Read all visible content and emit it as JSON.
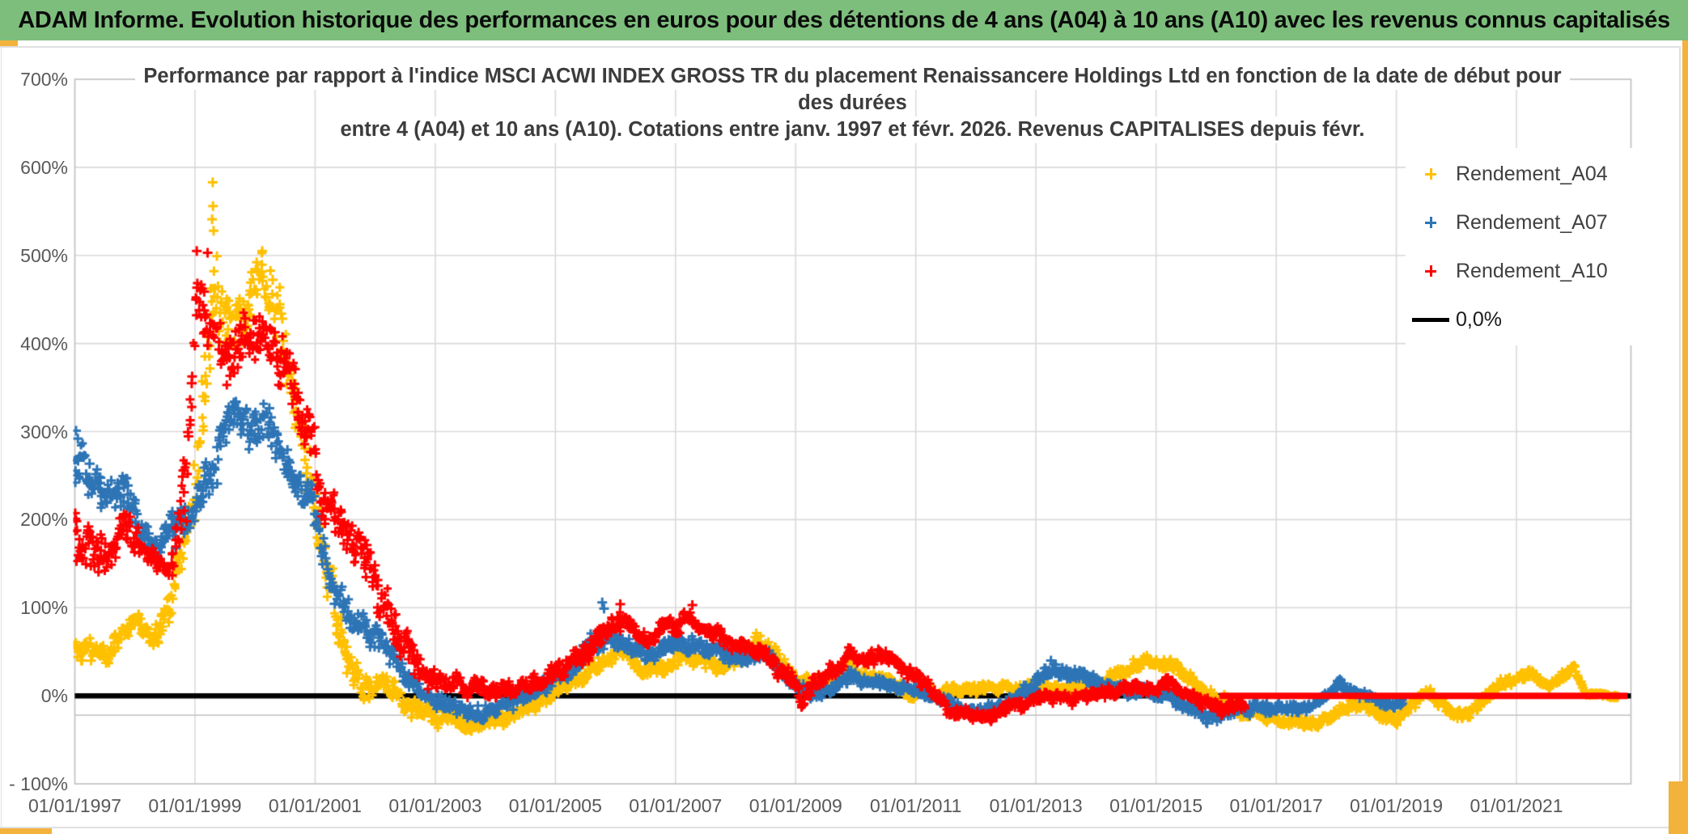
{
  "banner": {
    "title": "ADAM Informe. Evolution historique des performances en euros pour des détentions de 4 ans (A04) à 10 ans (A10) avec les revenus connus capitalisés"
  },
  "chart": {
    "title_lines": [
      "Performance par rapport à l'indice MSCI ACWI INDEX GROSS TR  du placement Renaissancere Holdings Ltd en fonction de la date de début pour",
      "des durées",
      "entre 4 (A04) et 10 ans (A10). Cotations entre janv. 1997 et févr. 2026. Revenus CAPITALISES depuis févr."
    ],
    "legend": [
      {
        "label": "Rendement_A04",
        "color": "#FFC000",
        "marker": "plus"
      },
      {
        "label": "Rendement_A07",
        "color": "#2E75B6",
        "marker": "plus"
      },
      {
        "label": "Rendement_A10",
        "color": "#FF0000",
        "marker": "plus"
      },
      {
        "label": "0,0%",
        "color": "#000000",
        "marker": "line"
      }
    ]
  },
  "chart_data": {
    "type": "scatter",
    "title": "Performance par rapport à l'indice MSCI ACWI INDEX GROSS TR du placement Renaissancere Holdings Ltd en fonction de la date de début pour des durées entre 4 (A04) et 10 ans (A10). Cotations entre janv. 1997 et févr. 2026. Revenus CAPITALISES depuis févr.",
    "marker": "plus-cross",
    "grid": {
      "vertical_every_years": 2,
      "horizontal_every_pct": 100,
      "color": "#D9D9D9"
    },
    "x_axis": {
      "labels": [
        "01/01/1997",
        "01/01/1999",
        "01/01/2001",
        "01/01/2003",
        "01/01/2005",
        "01/01/2007",
        "01/01/2009",
        "01/01/2011",
        "01/01/2013",
        "01/01/2015",
        "01/01/2017",
        "01/01/2019",
        "01/01/2021"
      ],
      "tick_years": [
        1997,
        1999,
        2001,
        2003,
        2005,
        2007,
        2009,
        2011,
        2013,
        2015,
        2017,
        2019,
        2021
      ],
      "min_year": 1997.0,
      "max_year": 2022.9
    },
    "y_axis": {
      "labels": [
        "700%",
        "600%",
        "500%",
        "400%",
        "300%",
        "200%",
        "100%",
        "0%",
        "- 100%"
      ],
      "tick_values": [
        700,
        600,
        500,
        400,
        300,
        200,
        100,
        0,
        -100
      ],
      "min": -100,
      "max": 700,
      "unit": "%"
    },
    "zero_line": {
      "value": 0,
      "color": "#000000",
      "label": "0,0%"
    },
    "red_zero_segment": {
      "from_year": 2016.05,
      "to_year": 2022.85,
      "value": 0,
      "color": "#FF0000"
    },
    "minor_line": {
      "value": -22,
      "color": "#C9C9C9"
    },
    "series": [
      {
        "name": "Rendement_A04",
        "color": "#FFC000",
        "seed": 11,
        "anchors": [
          [
            1997.0,
            55,
            16
          ],
          [
            1997.45,
            42,
            14
          ],
          [
            1997.75,
            62,
            14
          ],
          [
            1998.0,
            88,
            14
          ],
          [
            1998.3,
            64,
            12
          ],
          [
            1998.6,
            100,
            22
          ],
          [
            1999.0,
            215,
            45
          ],
          [
            1999.2,
            400,
            55
          ],
          [
            1999.32,
            480,
            55
          ],
          [
            1999.5,
            420,
            42
          ],
          [
            1999.8,
            420,
            40
          ],
          [
            2000.1,
            472,
            32
          ],
          [
            2000.3,
            452,
            40
          ],
          [
            2000.6,
            360,
            40
          ],
          [
            2000.9,
            262,
            35
          ],
          [
            2001.1,
            190,
            30
          ],
          [
            2001.45,
            62,
            30
          ],
          [
            2001.75,
            12,
            16
          ],
          [
            2002.2,
            6,
            14
          ],
          [
            2002.6,
            -14,
            12
          ],
          [
            2003.0,
            -25,
            11
          ],
          [
            2003.6,
            -31,
            9
          ],
          [
            2004.2,
            -26,
            9
          ],
          [
            2004.8,
            -6,
            9
          ],
          [
            2005.4,
            24,
            11
          ],
          [
            2006.05,
            50,
            11
          ],
          [
            2006.5,
            30,
            9
          ],
          [
            2007.1,
            46,
            11
          ],
          [
            2007.7,
            30,
            9
          ],
          [
            2008.4,
            62,
            13
          ],
          [
            2009.0,
            20,
            9
          ],
          [
            2009.45,
            16,
            8
          ],
          [
            2009.85,
            33,
            9
          ],
          [
            2010.35,
            20,
            8
          ],
          [
            2010.85,
            2,
            8
          ],
          [
            2011.3,
            6,
            7
          ],
          [
            2012.0,
            10,
            7
          ],
          [
            2012.6,
            7,
            7
          ],
          [
            2013.1,
            13,
            7
          ],
          [
            2013.6,
            8,
            7
          ],
          [
            2014.1,
            16,
            7
          ],
          [
            2014.7,
            38,
            8
          ],
          [
            2015.3,
            34,
            8
          ],
          [
            2015.9,
            4,
            8
          ],
          [
            2016.5,
            -20,
            8
          ],
          [
            2017.1,
            -28,
            7
          ],
          [
            2017.7,
            -32,
            7
          ],
          [
            2018.1,
            -15,
            7
          ],
          [
            2018.45,
            -8,
            7
          ],
          [
            2019.0,
            -28,
            8
          ],
          [
            2019.5,
            2,
            7
          ],
          [
            2020.1,
            -25,
            8
          ],
          [
            2020.7,
            8,
            8
          ],
          [
            2021.15,
            27,
            7
          ],
          [
            2021.55,
            12,
            6
          ],
          [
            2021.95,
            30,
            8
          ],
          [
            2022.15,
            2,
            3
          ],
          [
            2022.7,
            -1,
            2
          ]
        ],
        "outliers": [
          [
            1999.295,
            583
          ],
          [
            1999.3,
            556
          ],
          [
            1999.285,
            541
          ],
          [
            1999.31,
            528
          ],
          [
            2000.12,
            505
          ],
          [
            1998.98,
            262
          ]
        ]
      },
      {
        "name": "Rendement_A07",
        "color": "#2E75B6",
        "seed": 22,
        "anchors": [
          [
            1997.0,
            262,
            32
          ],
          [
            1997.35,
            240,
            28
          ],
          [
            1997.7,
            228,
            24
          ],
          [
            1998.0,
            208,
            24
          ],
          [
            1998.35,
            162,
            20
          ],
          [
            1998.7,
            188,
            28
          ],
          [
            1999.0,
            218,
            28
          ],
          [
            1999.3,
            262,
            28
          ],
          [
            1999.6,
            318,
            24
          ],
          [
            1999.9,
            298,
            28
          ],
          [
            2000.2,
            308,
            28
          ],
          [
            2000.6,
            256,
            24
          ],
          [
            2001.0,
            212,
            24
          ],
          [
            2001.3,
            122,
            24
          ],
          [
            2001.7,
            86,
            18
          ],
          [
            2002.1,
            56,
            16
          ],
          [
            2002.6,
            16,
            14
          ],
          [
            2003.1,
            -8,
            10
          ],
          [
            2003.7,
            -18,
            9
          ],
          [
            2004.3,
            -10,
            9
          ],
          [
            2004.8,
            14,
            9
          ],
          [
            2005.2,
            28,
            10
          ],
          [
            2005.8,
            66,
            16
          ],
          [
            2006.2,
            60,
            11
          ],
          [
            2006.6,
            48,
            9
          ],
          [
            2007.1,
            66,
            11
          ],
          [
            2007.6,
            53,
            9
          ],
          [
            2008.1,
            41,
            9
          ],
          [
            2008.45,
            54,
            9
          ],
          [
            2009.0,
            10,
            9
          ],
          [
            2009.4,
            2,
            8
          ],
          [
            2009.9,
            20,
            8
          ],
          [
            2010.4,
            17,
            7
          ],
          [
            2010.9,
            9,
            7
          ],
          [
            2011.4,
            -6,
            7
          ],
          [
            2012.0,
            -20,
            7
          ],
          [
            2012.55,
            -8,
            7
          ],
          [
            2013.2,
            28,
            9
          ],
          [
            2013.7,
            24,
            8
          ],
          [
            2014.2,
            12,
            7
          ],
          [
            2014.7,
            5,
            7
          ],
          [
            2015.2,
            -2,
            7
          ],
          [
            2015.9,
            -27,
            9
          ],
          [
            2016.4,
            -14,
            7
          ],
          [
            2016.9,
            -15,
            7
          ],
          [
            2017.6,
            -12,
            7
          ],
          [
            2018.05,
            12,
            7
          ],
          [
            2018.45,
            2,
            7
          ],
          [
            2018.9,
            -12,
            7
          ],
          [
            2019.1,
            -7,
            6
          ]
        ],
        "outliers": [
          [
            1997.02,
            301
          ],
          [
            1997.05,
            292
          ],
          [
            2005.78,
            106
          ],
          [
            2005.81,
            99
          ],
          [
            2013.25,
            40
          ]
        ]
      },
      {
        "name": "Rendement_A10",
        "color": "#FF0000",
        "seed": 33,
        "anchors": [
          [
            1997.0,
            175,
            32
          ],
          [
            1997.4,
            152,
            24
          ],
          [
            1997.9,
            190,
            24
          ],
          [
            1998.2,
            166,
            20
          ],
          [
            1998.6,
            142,
            20
          ],
          [
            1998.85,
            235,
            55
          ],
          [
            1999.05,
            455,
            40
          ],
          [
            1999.25,
            425,
            45
          ],
          [
            1999.55,
            380,
            35
          ],
          [
            1999.85,
            390,
            35
          ],
          [
            2000.15,
            412,
            35
          ],
          [
            2000.5,
            372,
            35
          ],
          [
            2000.9,
            295,
            35
          ],
          [
            2001.2,
            198,
            30
          ],
          [
            2001.55,
            185,
            25
          ],
          [
            2001.9,
            138,
            25
          ],
          [
            2002.3,
            82,
            24
          ],
          [
            2002.7,
            32,
            20
          ],
          [
            2003.1,
            14,
            14
          ],
          [
            2003.6,
            10,
            12
          ],
          [
            2004.2,
            8,
            11
          ],
          [
            2004.8,
            18,
            10
          ],
          [
            2005.4,
            45,
            14
          ],
          [
            2005.95,
            80,
            14
          ],
          [
            2006.15,
            88,
            12
          ],
          [
            2006.55,
            66,
            10
          ],
          [
            2007.0,
            80,
            11
          ],
          [
            2007.3,
            90,
            10
          ],
          [
            2007.85,
            60,
            10
          ],
          [
            2008.35,
            54,
            10
          ],
          [
            2008.85,
            24,
            12
          ],
          [
            2009.1,
            -2,
            10
          ],
          [
            2009.5,
            24,
            11
          ],
          [
            2009.9,
            45,
            10
          ],
          [
            2010.5,
            42,
            10
          ],
          [
            2011.0,
            25,
            10
          ],
          [
            2011.55,
            -18,
            9
          ],
          [
            2012.05,
            -26,
            8
          ],
          [
            2012.6,
            -13,
            8
          ],
          [
            2013.2,
            -3,
            8
          ],
          [
            2013.8,
            1,
            8
          ],
          [
            2014.45,
            8,
            8
          ],
          [
            2015.0,
            8,
            8
          ],
          [
            2015.3,
            13,
            8
          ],
          [
            2015.75,
            -8,
            9
          ],
          [
            2016.1,
            -14,
            8
          ],
          [
            2016.5,
            -12,
            6
          ]
        ],
        "outliers": [
          [
            2006.08,
            104
          ],
          [
            2007.28,
            103
          ],
          [
            1999.03,
            505
          ],
          [
            1999.21,
            503
          ]
        ]
      }
    ]
  }
}
